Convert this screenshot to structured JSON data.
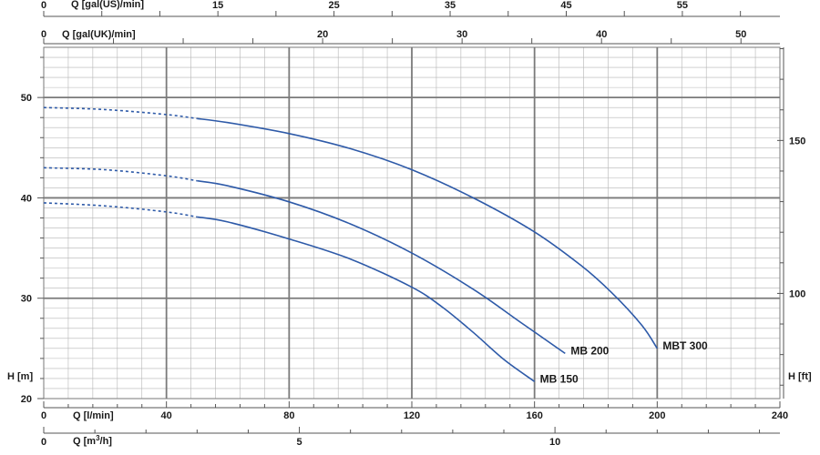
{
  "chart_data": {
    "type": "line",
    "x_axis": {
      "label": "Q [l/min]",
      "min": 0,
      "max": 240,
      "ticks": [
        0,
        40,
        80,
        120,
        160,
        200,
        240
      ]
    },
    "y_axis": {
      "label": "H [m]",
      "min": 20,
      "max": 55,
      "ticks": [
        20,
        30,
        40,
        50
      ]
    },
    "secondary_axes": {
      "q_gal_us": {
        "label": "Q [gal(US)/min]",
        "ticks": [
          0,
          15,
          25,
          35,
          45,
          55
        ]
      },
      "q_gal_uk": {
        "label": "Q [gal(UK)/min]",
        "ticks": [
          0,
          20,
          30,
          40,
          50
        ]
      },
      "q_m3h": {
        "label_main": "Q [m",
        "label_sup": "3",
        "label_end": "/h]",
        "ticks": [
          0,
          5,
          10
        ]
      },
      "h_ft": {
        "label": "H [ft]",
        "ticks": [
          100,
          150
        ]
      }
    },
    "grid": true,
    "colors": {
      "curve": "#2e5aa8",
      "major_grid": "#7a7a7a",
      "minor_grid": "#b5b5b5"
    },
    "series": [
      {
        "name": "MBT 300",
        "dashed": [
          [
            0,
            49.0
          ],
          [
            20,
            48.8
          ],
          [
            40,
            48.3
          ],
          [
            50,
            47.9
          ]
        ],
        "points": [
          [
            50,
            47.9
          ],
          [
            60,
            47.5
          ],
          [
            80,
            46.4
          ],
          [
            100,
            44.9
          ],
          [
            120,
            42.8
          ],
          [
            140,
            40.0
          ],
          [
            160,
            36.6
          ],
          [
            175,
            33.3
          ],
          [
            185,
            30.6
          ],
          [
            195,
            27.3
          ],
          [
            200,
            25.0
          ]
        ]
      },
      {
        "name": "MB 200",
        "dashed": [
          [
            0,
            43.0
          ],
          [
            20,
            42.8
          ],
          [
            40,
            42.2
          ],
          [
            50,
            41.7
          ]
        ],
        "points": [
          [
            50,
            41.7
          ],
          [
            60,
            41.2
          ],
          [
            80,
            39.6
          ],
          [
            100,
            37.4
          ],
          [
            120,
            34.5
          ],
          [
            140,
            30.9
          ],
          [
            155,
            27.7
          ],
          [
            170,
            24.5
          ]
        ]
      },
      {
        "name": "MB 150",
        "dashed": [
          [
            0,
            39.5
          ],
          [
            20,
            39.2
          ],
          [
            40,
            38.6
          ],
          [
            50,
            38.1
          ]
        ],
        "points": [
          [
            50,
            38.1
          ],
          [
            60,
            37.6
          ],
          [
            80,
            35.9
          ],
          [
            100,
            33.9
          ],
          [
            120,
            31.1
          ],
          [
            130,
            29.1
          ],
          [
            140,
            26.6
          ],
          [
            150,
            23.9
          ],
          [
            160,
            21.7
          ]
        ]
      }
    ]
  }
}
